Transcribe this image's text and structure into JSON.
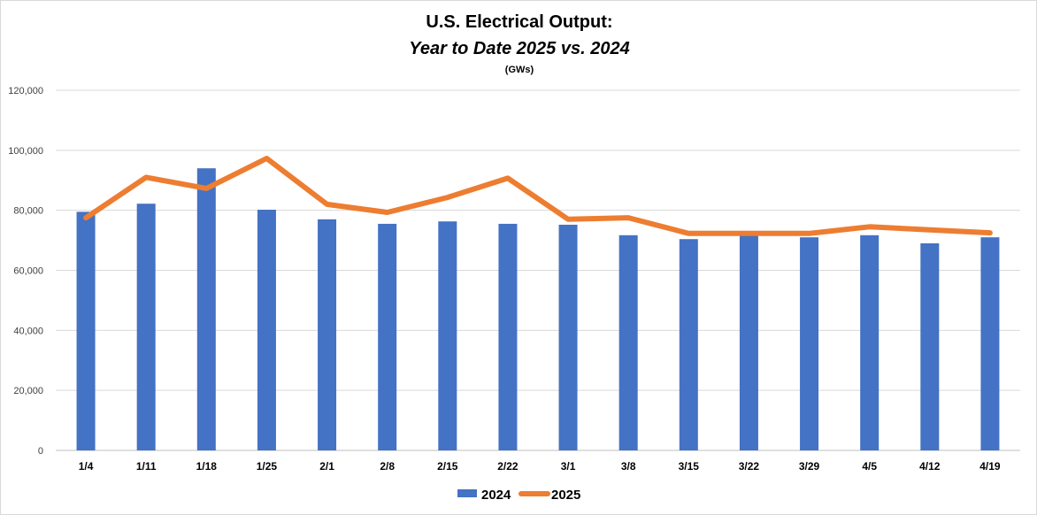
{
  "chart_data": {
    "type": "bar",
    "title": "U.S. Electrical Output:",
    "subtitle": "Year to Date 2025 vs. 2024",
    "units": "(GWs)",
    "categories": [
      "1/4",
      "1/11",
      "1/18",
      "1/25",
      "2/1",
      "2/8",
      "2/15",
      "2/22",
      "3/1",
      "3/8",
      "3/15",
      "3/22",
      "3/29",
      "4/5",
      "4/12",
      "4/19"
    ],
    "ylim": [
      0,
      120000
    ],
    "yticks": [
      0,
      20000,
      40000,
      60000,
      80000,
      100000,
      120000
    ],
    "ytick_labels": [
      "0",
      "20,000",
      "40,000",
      "60,000",
      "80,000",
      "100,000",
      "120,000"
    ],
    "grid": true,
    "legend_position": "bottom",
    "series": [
      {
        "name": "2024",
        "type": "bar",
        "color": "#4472c4",
        "values": [
          79500,
          82200,
          94000,
          80200,
          77000,
          75500,
          76300,
          75500,
          75200,
          71700,
          70400,
          71700,
          71000,
          71700,
          69000,
          71000
        ]
      },
      {
        "name": "2025",
        "type": "line",
        "color": "#ed7d31",
        "values": [
          77500,
          91000,
          87300,
          97300,
          82000,
          79300,
          84300,
          90700,
          77000,
          77500,
          72300,
          72300,
          72300,
          74500,
          73500,
          72500
        ]
      }
    ]
  }
}
